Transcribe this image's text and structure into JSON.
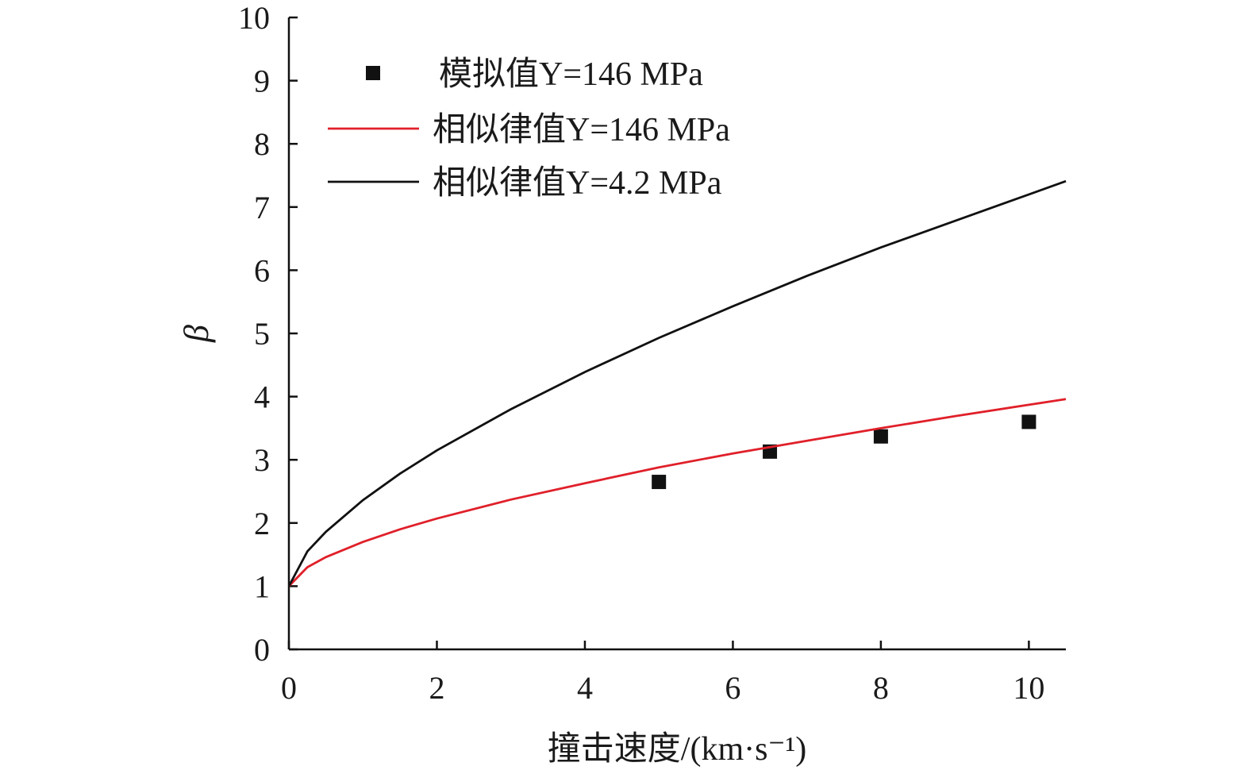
{
  "chart_data": {
    "type": "line",
    "xlabel": "撞击速度/(km·s⁻¹)",
    "ylabel": "β",
    "xlim": [
      0,
      10.5
    ],
    "ylim": [
      0,
      10
    ],
    "xticks": [
      "0",
      "2",
      "4",
      "6",
      "8",
      "10"
    ],
    "yticks": [
      "0",
      "1",
      "2",
      "3",
      "4",
      "5",
      "6",
      "7",
      "8",
      "9",
      "10"
    ],
    "grid": false,
    "legend": "top-left",
    "series": [
      {
        "name": "模拟值Y=146 MPa",
        "kind": "scatter",
        "marker": "square",
        "color": "#111111",
        "x": [
          5,
          6.5,
          8,
          10
        ],
        "y": [
          2.65,
          3.13,
          3.37,
          3.6
        ]
      },
      {
        "name": "相似律值Y=146 MPa",
        "kind": "line",
        "color": "#e0202a",
        "x": [
          0,
          0.25,
          0.5,
          1,
          1.5,
          2,
          3,
          4,
          5,
          6,
          7,
          8,
          9,
          10,
          10.5
        ],
        "y": [
          1,
          1.3,
          1.46,
          1.7,
          1.9,
          2.07,
          2.37,
          2.63,
          2.88,
          3.1,
          3.3,
          3.5,
          3.69,
          3.87,
          3.96
        ]
      },
      {
        "name": "相似律值Y=4.2 MPa",
        "kind": "line",
        "color": "#111111",
        "x": [
          0,
          0.25,
          0.5,
          1,
          1.5,
          2,
          3,
          4,
          5,
          6,
          7,
          8,
          9,
          10,
          10.5
        ],
        "y": [
          1,
          1.55,
          1.86,
          2.36,
          2.78,
          3.15,
          3.8,
          4.39,
          4.93,
          5.43,
          5.91,
          6.36,
          6.78,
          7.2,
          7.41
        ]
      }
    ]
  }
}
